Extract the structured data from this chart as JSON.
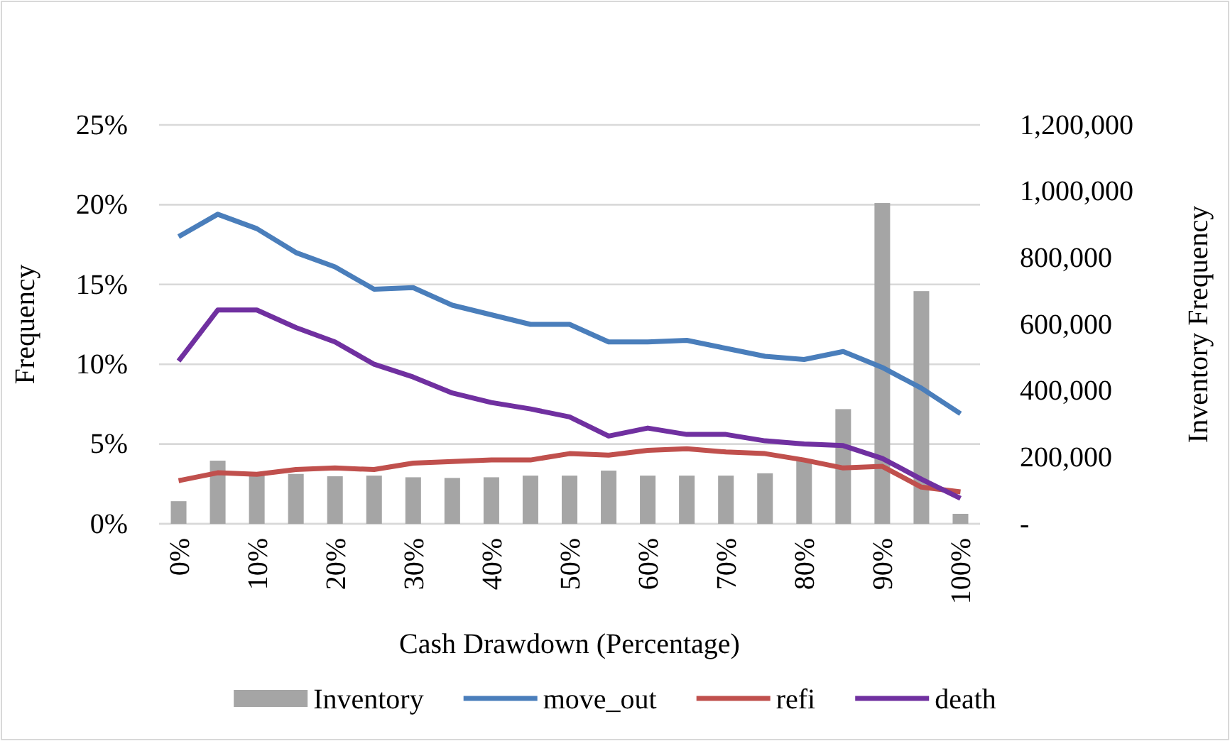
{
  "chart_data": {
    "type": "line",
    "xlabel": "Cash Drawdown (Percentage)",
    "ylabel": "Frequency",
    "y2label": "Inventory Frequency",
    "categories": [
      "0%",
      null,
      "10%",
      null,
      "20%",
      null,
      "30%",
      null,
      "40%",
      null,
      "50%",
      null,
      "60%",
      null,
      "70%",
      null,
      "80%",
      null,
      "90%",
      null,
      "100%"
    ],
    "series": [
      {
        "name": "Inventory",
        "type": "bar",
        "axis": "y2",
        "color": "#a5a5a5",
        "values": [
          68000,
          190000,
          145000,
          150000,
          143000,
          145000,
          140000,
          138000,
          140000,
          145000,
          145000,
          160000,
          145000,
          145000,
          145000,
          152000,
          190000,
          345000,
          965000,
          700000,
          30000
        ]
      },
      {
        "name": "move_out",
        "color": "#4a7ebb",
        "values": [
          18.0,
          19.4,
          18.5,
          17.0,
          16.1,
          14.7,
          14.8,
          13.7,
          13.1,
          12.5,
          12.5,
          11.4,
          11.4,
          11.5,
          11.0,
          10.5,
          10.3,
          10.8,
          9.8,
          8.5,
          6.9
        ]
      },
      {
        "name": "refi",
        "color": "#c0504d",
        "values": [
          2.7,
          3.2,
          3.1,
          3.4,
          3.5,
          3.4,
          3.8,
          3.9,
          4.0,
          4.0,
          4.4,
          4.3,
          4.6,
          4.7,
          4.5,
          4.4,
          4.0,
          3.5,
          3.6,
          2.3,
          2.0
        ]
      },
      {
        "name": "death",
        "color": "#7030a0",
        "values": [
          10.2,
          13.4,
          13.4,
          12.3,
          11.4,
          10.0,
          9.2,
          8.2,
          7.6,
          7.2,
          6.7,
          5.5,
          6.0,
          5.6,
          5.6,
          5.2,
          5.0,
          4.9,
          4.1,
          2.8,
          1.6
        ]
      }
    ],
    "ylim": [
      0,
      25
    ],
    "yticks": [
      {
        "value": 0,
        "label": "0%"
      },
      {
        "value": 5,
        "label": "5%"
      },
      {
        "value": 10,
        "label": "10%"
      },
      {
        "value": 15,
        "label": "15%"
      },
      {
        "value": 20,
        "label": "20%"
      },
      {
        "value": 25,
        "label": "25%"
      }
    ],
    "y2lim": [
      0,
      1200000
    ],
    "y2ticks": [
      {
        "value": 0,
        "label": "-"
      },
      {
        "value": 200000,
        "label": "200,000"
      },
      {
        "value": 400000,
        "label": "400,000"
      },
      {
        "value": 600000,
        "label": "600,000"
      },
      {
        "value": 800000,
        "label": "800,000"
      },
      {
        "value": 1000000,
        "label": "1,000,000"
      },
      {
        "value": 1200000,
        "label": "1,200,000"
      }
    ],
    "grid": "y",
    "legend": "bottom",
    "line_style": "solid",
    "marker": "none"
  }
}
